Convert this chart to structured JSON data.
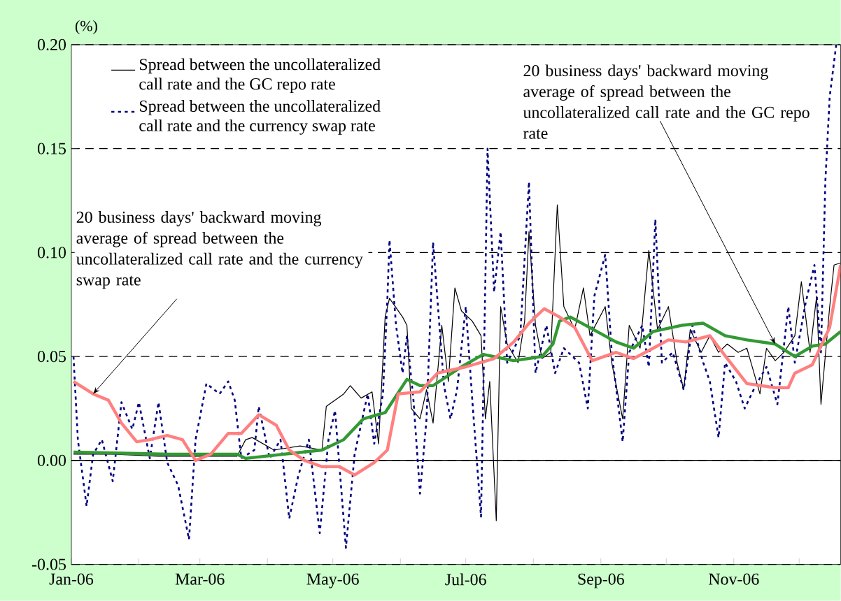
{
  "chart_data": {
    "type": "line",
    "ylabel": "(%)",
    "xlim": [
      "2006-01-01",
      "2006-12-20"
    ],
    "xticks": [
      {
        "value": "2006-01-01",
        "label": "Jan-06"
      },
      {
        "value": "2006-02-01",
        "label": null
      },
      {
        "value": "2006-03-01",
        "label": "Mar-06"
      },
      {
        "value": "2006-04-01",
        "label": null
      },
      {
        "value": "2006-05-01",
        "label": "May-06"
      },
      {
        "value": "2006-06-01",
        "label": null
      },
      {
        "value": "2006-07-01",
        "label": "Jul-06"
      },
      {
        "value": "2006-08-01",
        "label": null
      },
      {
        "value": "2006-09-01",
        "label": "Sep-06"
      },
      {
        "value": "2006-10-01",
        "label": null
      },
      {
        "value": "2006-11-01",
        "label": "Nov-06"
      },
      {
        "value": "2006-12-01",
        "label": null
      }
    ],
    "ylim": [
      -0.05,
      0.2
    ],
    "yticks": [
      -0.05,
      {
        "value": 0,
        "label": "0.00"
      },
      0.05,
      {
        "value": 0.1,
        "label": "0.10"
      },
      0.15,
      {
        "value": 0.2,
        "label": "0.20"
      }
    ],
    "grid": "y",
    "legend": "top left",
    "marker": "none",
    "ref_lines": [
      {
        "axis": "y",
        "value": 0,
        "color": "#000000",
        "line_style": "solid"
      }
    ],
    "series": [
      {
        "name": "Spread between the uncollateralized call rate and the GC repo rate",
        "color": "#000000",
        "line_style": "solid",
        "x": [
          "2006-01-02",
          "2006-01-20",
          "2006-02-10",
          "2006-03-04",
          "2006-03-18",
          "2006-03-22",
          "2006-03-25",
          "2006-04-04",
          "2006-04-16",
          "2006-04-26",
          "2006-04-28",
          "2006-05-06",
          "2006-05-09",
          "2006-05-14",
          "2006-05-19",
          "2006-05-22",
          "2006-05-25",
          "2006-05-27",
          "2006-06-02",
          "2006-06-04",
          "2006-06-06",
          "2006-06-10",
          "2006-06-13",
          "2006-06-16",
          "2006-06-20",
          "2006-06-23",
          "2006-06-26",
          "2006-06-29",
          "2006-07-04",
          "2006-07-08",
          "2006-07-10",
          "2006-07-12",
          "2006-07-15",
          "2006-07-17",
          "2006-07-20",
          "2006-07-25",
          "2006-07-28",
          "2006-07-30",
          "2006-08-02",
          "2006-08-05",
          "2006-08-09",
          "2006-08-12",
          "2006-08-15",
          "2006-08-20",
          "2006-08-24",
          "2006-08-27",
          "2006-09-03",
          "2006-09-06",
          "2006-09-11",
          "2006-09-14",
          "2006-09-19",
          "2006-09-23",
          "2006-09-27",
          "2006-10-02",
          "2006-10-06",
          "2006-10-09",
          "2006-10-12",
          "2006-10-17",
          "2006-10-21",
          "2006-10-25",
          "2006-10-29",
          "2006-11-03",
          "2006-11-07",
          "2006-11-13",
          "2006-11-16",
          "2006-11-20",
          "2006-11-24",
          "2006-11-29",
          "2006-12-02",
          "2006-12-06",
          "2006-12-09",
          "2006-12-11",
          "2006-12-15",
          "2006-12-17",
          "2006-12-20"
        ],
        "values": [
          0.003,
          0.003,
          0.002,
          0.002,
          0.002,
          0.01,
          0.011,
          0.005,
          0.007,
          0.005,
          0.026,
          0.032,
          0.036,
          0.03,
          0.033,
          0.008,
          0.069,
          0.078,
          0.069,
          0.065,
          0.025,
          0.02,
          0.034,
          0.018,
          0.065,
          0.038,
          0.083,
          0.072,
          0.067,
          0.06,
          0.02,
          0.038,
          -0.029,
          0.074,
          0.056,
          0.047,
          0.067,
          0.11,
          0.065,
          0.049,
          0.052,
          0.123,
          0.074,
          0.063,
          0.083,
          0.06,
          0.074,
          0.047,
          0.02,
          0.065,
          0.054,
          0.101,
          0.063,
          0.074,
          0.047,
          0.034,
          0.063,
          0.052,
          0.06,
          0.052,
          0.056,
          0.052,
          0.054,
          0.032,
          0.054,
          0.048,
          0.052,
          0.06,
          0.086,
          0.052,
          0.079,
          0.027,
          0.074,
          0.094,
          0.095
        ]
      },
      {
        "name": "Spread between the uncollateralized call rate and the currency swap rate",
        "color": "#000080",
        "line_style": "dashed",
        "x": [
          "2006-01-02",
          "2006-01-04",
          "2006-01-08",
          "2006-01-11",
          "2006-01-15",
          "2006-01-20",
          "2006-01-24",
          "2006-01-29",
          "2006-02-01",
          "2006-02-06",
          "2006-02-10",
          "2006-02-14",
          "2006-02-19",
          "2006-02-24",
          "2006-02-27",
          "2006-03-04",
          "2006-03-10",
          "2006-03-14",
          "2006-03-17",
          "2006-03-20",
          "2006-03-26",
          "2006-03-28",
          "2006-04-02",
          "2006-04-07",
          "2006-04-11",
          "2006-04-15",
          "2006-04-20",
          "2006-04-25",
          "2006-04-29",
          "2006-05-02",
          "2006-05-07",
          "2006-05-11",
          "2006-05-17",
          "2006-05-20",
          "2006-05-24",
          "2006-05-26",
          "2006-05-27",
          "2006-05-30",
          "2006-06-02",
          "2006-06-04",
          "2006-06-07",
          "2006-06-10",
          "2006-06-13",
          "2006-06-16",
          "2006-06-21",
          "2006-06-24",
          "2006-06-27",
          "2006-07-01",
          "2006-07-04",
          "2006-07-08",
          "2006-07-10",
          "2006-07-11",
          "2006-07-14",
          "2006-07-17",
          "2006-07-20",
          "2006-07-26",
          "2006-07-30",
          "2006-08-02",
          "2006-08-07",
          "2006-08-11",
          "2006-08-15",
          "2006-08-22",
          "2006-08-26",
          "2006-08-29",
          "2006-09-03",
          "2006-09-06",
          "2006-09-11",
          "2006-09-14",
          "2006-09-20",
          "2006-09-23",
          "2006-09-26",
          "2006-09-29",
          "2006-10-04",
          "2006-10-09",
          "2006-10-13",
          "2006-10-18",
          "2006-10-21",
          "2006-10-25",
          "2006-10-28",
          "2006-11-02",
          "2006-11-06",
          "2006-11-11",
          "2006-11-16",
          "2006-11-21",
          "2006-11-26",
          "2006-11-29",
          "2006-12-04",
          "2006-12-08",
          "2006-12-11",
          "2006-12-13",
          "2006-12-15",
          "2006-12-18"
        ],
        "values": [
          0.05,
          0.01,
          -0.022,
          0.003,
          0.01,
          -0.01,
          0.028,
          0.015,
          0.028,
          0.001,
          0.028,
          -0.001,
          -0.012,
          -0.038,
          0.01,
          0.037,
          0.032,
          0.038,
          0.029,
          0.001,
          0.005,
          0.026,
          0.001,
          0.01,
          -0.028,
          -0.008,
          0.01,
          -0.035,
          0.01,
          0.024,
          -0.042,
          0.003,
          0.032,
          0.008,
          0.032,
          0.077,
          0.106,
          0.065,
          0.042,
          0.06,
          0.029,
          -0.016,
          0.02,
          0.105,
          0.036,
          0.02,
          0.034,
          0.074,
          0.029,
          -0.027,
          0.087,
          0.15,
          0.081,
          0.11,
          0.047,
          0.06,
          0.134,
          0.042,
          0.065,
          0.042,
          0.054,
          0.047,
          0.025,
          0.079,
          0.099,
          0.052,
          0.009,
          0.052,
          0.065,
          0.045,
          0.116,
          0.047,
          0.052,
          0.034,
          0.065,
          0.047,
          0.038,
          0.011,
          0.047,
          0.038,
          0.025,
          0.036,
          0.045,
          0.027,
          0.074,
          0.047,
          0.076,
          0.094,
          0.052,
          0.134,
          0.175,
          0.2
        ]
      },
      {
        "color": "#339933",
        "line_style": "solid",
        "x": [
          "2006-01-02",
          "2006-02-15",
          "2006-03-18",
          "2006-03-22",
          "2006-04-26",
          "2006-05-06",
          "2006-05-15",
          "2006-05-25",
          "2006-06-04",
          "2006-06-10",
          "2006-06-16",
          "2006-06-29",
          "2006-07-09",
          "2006-07-23",
          "2006-08-05",
          "2006-08-10",
          "2006-08-13",
          "2006-08-18",
          "2006-09-08",
          "2006-09-16",
          "2006-09-25",
          "2006-10-08",
          "2006-10-18",
          "2006-10-28",
          "2006-11-07",
          "2006-11-20",
          "2006-11-29",
          "2006-12-07",
          "2006-12-13",
          "2006-12-20"
        ],
        "values": [
          0.004,
          0.003,
          0.003,
          0.001,
          0.005,
          0.01,
          0.02,
          0.023,
          0.039,
          0.036,
          0.036,
          0.045,
          0.051,
          0.048,
          0.05,
          0.056,
          0.067,
          0.069,
          0.057,
          0.054,
          0.062,
          0.065,
          0.066,
          0.06,
          0.058,
          0.056,
          0.05,
          0.055,
          0.056,
          0.062
        ]
      },
      {
        "color": "#ff8080",
        "line_style": "solid",
        "x": [
          "2006-01-02",
          "2006-01-11",
          "2006-01-18",
          "2006-01-24",
          "2006-01-31",
          "2006-02-06",
          "2006-02-14",
          "2006-02-21",
          "2006-02-27",
          "2006-03-06",
          "2006-03-14",
          "2006-03-20",
          "2006-03-28",
          "2006-04-05",
          "2006-04-11",
          "2006-04-18",
          "2006-04-26",
          "2006-05-04",
          "2006-05-11",
          "2006-05-20",
          "2006-05-26",
          "2006-05-31",
          "2006-06-10",
          "2006-06-18",
          "2006-07-01",
          "2006-07-14",
          "2006-07-23",
          "2006-07-30",
          "2006-08-06",
          "2006-08-13",
          "2006-08-20",
          "2006-08-28",
          "2006-09-08",
          "2006-09-16",
          "2006-09-25",
          "2006-10-02",
          "2006-10-10",
          "2006-10-21",
          "2006-10-29",
          "2006-11-07",
          "2006-11-20",
          "2006-11-26",
          "2006-11-29",
          "2006-12-07",
          "2006-12-11",
          "2006-12-15",
          "2006-12-20"
        ],
        "values": [
          0.038,
          0.032,
          0.029,
          0.018,
          0.009,
          0.01,
          0.012,
          0.01,
          0.0,
          0.003,
          0.013,
          0.013,
          0.022,
          0.017,
          0.005,
          0.0,
          -0.003,
          -0.003,
          -0.007,
          -0.001,
          0.005,
          0.032,
          0.033,
          0.042,
          0.045,
          0.049,
          0.057,
          0.066,
          0.073,
          0.069,
          0.064,
          0.048,
          0.052,
          0.049,
          0.054,
          0.058,
          0.057,
          0.06,
          0.049,
          0.037,
          0.035,
          0.035,
          0.042,
          0.046,
          0.055,
          0.064,
          0.094
        ]
      }
    ],
    "annotations": [
      {
        "text": "20 business days' backward moving average of spread between the uncollateralized call rate and the GC repo rate",
        "x": "2006-11-20",
        "y": 0.056
      },
      {
        "text": "20 business days' backward moving average of spread between the uncollateralized call rate and the currency swap rate",
        "x": "2006-01-11",
        "y": 0.032
      }
    ]
  }
}
